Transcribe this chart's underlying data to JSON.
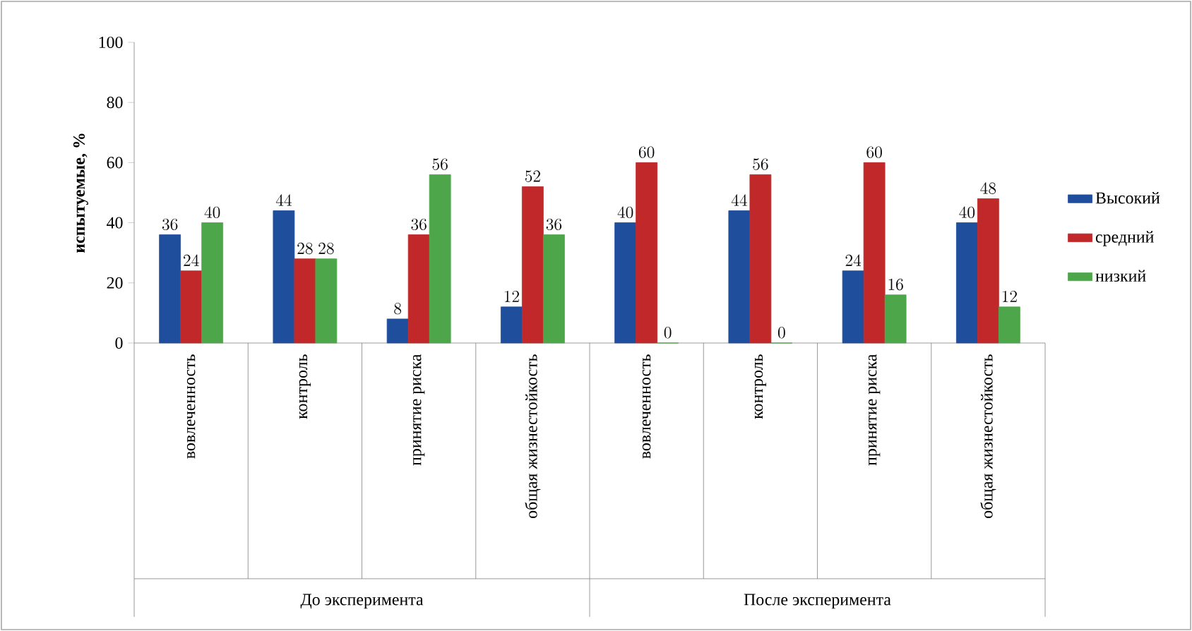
{
  "chart_data": {
    "type": "bar",
    "ylabel": "испытуемые, %",
    "categories": [
      "вовлеченность",
      "контроль",
      "принятие риска",
      "общая жизнестойкость",
      "вовлеченность",
      "контроль",
      "принятие риска",
      "общая жизнестойкость"
    ],
    "series": [
      {
        "name": "Высокий",
        "color": "#1f4e9c",
        "values": [
          36,
          44,
          8,
          12,
          40,
          44,
          24,
          40
        ]
      },
      {
        "name": "средний",
        "color": "#c0282a",
        "values": [
          24,
          28,
          36,
          52,
          60,
          56,
          60,
          48
        ]
      },
      {
        "name": "низкий",
        "color": "#4ea64a",
        "values": [
          40,
          28,
          56,
          36,
          0,
          0,
          16,
          12
        ]
      }
    ],
    "ylim": [
      0,
      100
    ],
    "yticks": [
      0,
      20,
      40,
      60,
      80,
      100
    ],
    "data_labels": true,
    "legend": "right",
    "grid": false,
    "annotations": [
      "До эксперимента",
      "После эксперимента"
    ]
  }
}
